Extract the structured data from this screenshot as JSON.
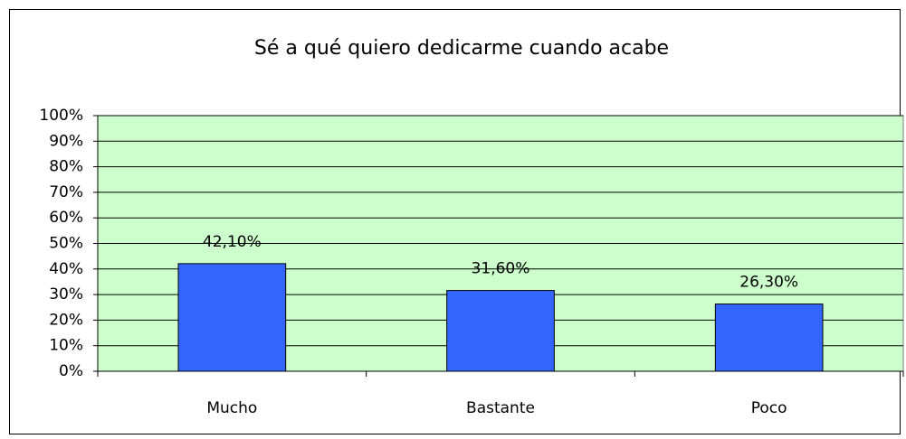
{
  "chart_data": {
    "type": "bar",
    "title": "Sé a qué quiero dedicarme cuando acabe",
    "categories": [
      "Mucho",
      "Bastante",
      "Poco"
    ],
    "values": [
      42.1,
      31.6,
      26.3
    ],
    "value_labels": [
      "42,10%",
      "31,60%",
      "26,30%"
    ],
    "color": "#3366ff",
    "ylim": [
      0,
      100
    ],
    "yticks": [
      {
        "value": 0,
        "label": "0%"
      },
      {
        "value": 10,
        "label": "10%"
      },
      {
        "value": 20,
        "label": "20%"
      },
      {
        "value": 30,
        "label": "30%"
      },
      {
        "value": 40,
        "label": "40%"
      },
      {
        "value": 50,
        "label": "50%"
      },
      {
        "value": 60,
        "label": "60%"
      },
      {
        "value": 70,
        "label": "70%"
      },
      {
        "value": 80,
        "label": "80%"
      },
      {
        "value": 90,
        "label": "90%"
      },
      {
        "value": 100,
        "label": "100%"
      }
    ],
    "grid": true
  }
}
